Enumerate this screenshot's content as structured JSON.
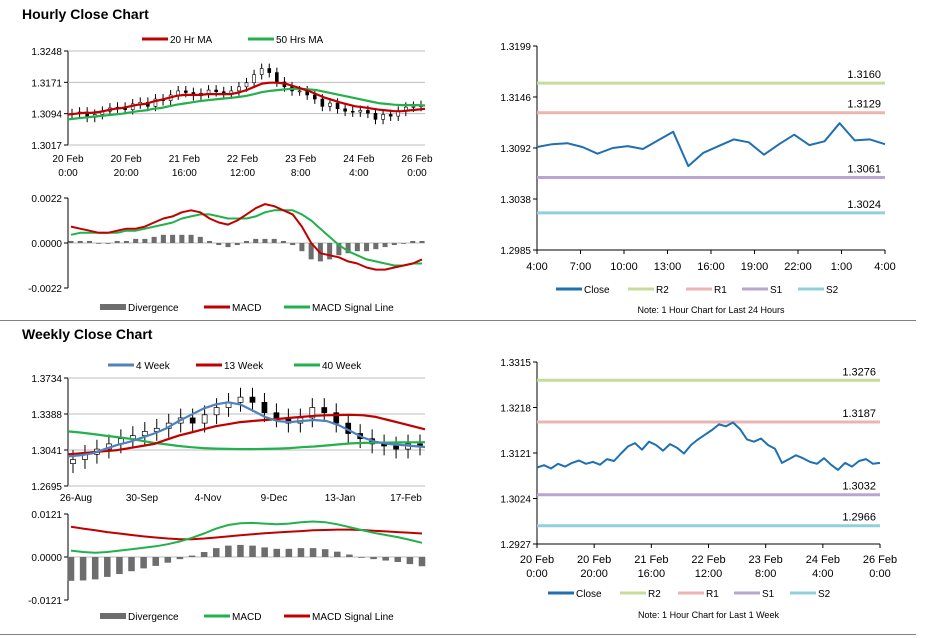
{
  "sections": [
    {
      "title": "Hourly Close Chart"
    },
    {
      "title": "Weekly Close Chart"
    }
  ],
  "colors": {
    "close": "#1f6fb2",
    "r2": "#c5dd98",
    "r1": "#eab4b4",
    "s1": "#b8a6d2",
    "s2": "#8fd0dc",
    "ma_red": "#c00000",
    "ma_green": "#22b14c",
    "ma_blue": "#4f81bd",
    "divergence": "#6d6d6d",
    "candle": "#000000"
  },
  "chart_data": [
    {
      "id": "hourly-price",
      "type": "line",
      "legend": [
        "20 Hr MA",
        "50 Hrs MA"
      ],
      "y_ticks": [
        "1.3248",
        "1.3171",
        "1.3094",
        "1.3017"
      ],
      "ylim": [
        1.3017,
        1.3248
      ],
      "x_ticks": [
        [
          "20 Feb",
          "0:00"
        ],
        [
          "20 Feb",
          "20:00"
        ],
        [
          "21 Feb",
          "16:00"
        ],
        [
          "22 Feb",
          "12:00"
        ],
        [
          "23 Feb",
          "8:00"
        ],
        [
          "24 Feb",
          "4:00"
        ],
        [
          "26 Feb",
          "0:00"
        ]
      ],
      "close": [
        1.3094,
        1.3098,
        1.3085,
        1.3092,
        1.31,
        1.3108,
        1.311,
        1.3104,
        1.3118,
        1.3122,
        1.3112,
        1.313,
        1.3126,
        1.314,
        1.315,
        1.3146,
        1.3138,
        1.3144,
        1.3152,
        1.3148,
        1.3142,
        1.315,
        1.316,
        1.317,
        1.319,
        1.3205,
        1.3195,
        1.3172,
        1.316,
        1.315,
        1.315,
        1.314,
        1.313,
        1.3112,
        1.312,
        1.3106,
        1.31,
        1.3098,
        1.3102,
        1.3095,
        1.308,
        1.3092,
        1.3088,
        1.31,
        1.311,
        1.3112,
        1.3114
      ],
      "ma20": [
        1.3092,
        1.3094,
        1.3096,
        1.3096,
        1.3098,
        1.3102,
        1.3106,
        1.3108,
        1.3112,
        1.3116,
        1.3118,
        1.3124,
        1.3128,
        1.3133,
        1.3138,
        1.314,
        1.314,
        1.314,
        1.3142,
        1.3142,
        1.3142,
        1.3142,
        1.3146,
        1.3152,
        1.316,
        1.3168,
        1.317,
        1.317,
        1.3168,
        1.3162,
        1.3156,
        1.315,
        1.3142,
        1.3134,
        1.3128,
        1.3122,
        1.3117,
        1.3112,
        1.311,
        1.3107,
        1.3104,
        1.3102,
        1.31,
        1.31,
        1.3102,
        1.3104,
        1.3106
      ],
      "ma50": [
        1.308,
        1.3082,
        1.3084,
        1.3086,
        1.3088,
        1.309,
        1.3092,
        1.3094,
        1.3097,
        1.31,
        1.3102,
        1.3106,
        1.3108,
        1.3112,
        1.3116,
        1.3119,
        1.3122,
        1.3125,
        1.3127,
        1.3129,
        1.3131,
        1.3133,
        1.3135,
        1.3138,
        1.3142,
        1.3147,
        1.315,
        1.3152,
        1.3154,
        1.3155,
        1.3155,
        1.3154,
        1.3152,
        1.3148,
        1.3144,
        1.314,
        1.3136,
        1.3132,
        1.3128,
        1.3124,
        1.312,
        1.3118,
        1.3116,
        1.3115,
        1.3115,
        1.3115,
        1.3114
      ]
    },
    {
      "id": "hourly-macd",
      "type": "line",
      "legend": [
        "Divergence",
        "MACD",
        "MACD Signal Line"
      ],
      "y_ticks": [
        "0.0022",
        "0.0000",
        "-0.0022"
      ],
      "ylim": [
        -0.0022,
        0.0022
      ],
      "macd": [
        0.0008,
        0.0007,
        0.0006,
        0.0005,
        0.0005,
        0.0006,
        0.0007,
        0.0007,
        0.0008,
        0.001,
        0.0012,
        0.0013,
        0.0015,
        0.0016,
        0.0015,
        0.0012,
        0.001,
        0.0009,
        0.0011,
        0.0014,
        0.0017,
        0.0019,
        0.0018,
        0.0016,
        0.0014,
        0.0008,
        0.0,
        -0.0005,
        -0.0006,
        -0.0007,
        -0.0009,
        -0.001,
        -0.0012,
        -0.0013,
        -0.0013,
        -0.0012,
        -0.0011,
        -0.001,
        -0.0008
      ],
      "signal": [
        0.0004,
        0.0005,
        0.0005,
        0.0005,
        0.0005,
        0.0005,
        0.0006,
        0.0006,
        0.0007,
        0.0008,
        0.0009,
        0.001,
        0.0012,
        0.0013,
        0.0014,
        0.0014,
        0.0013,
        0.0012,
        0.0012,
        0.0012,
        0.0013,
        0.0015,
        0.0016,
        0.0016,
        0.0016,
        0.0014,
        0.0011,
        0.0007,
        0.0003,
        -0.0001,
        -0.0004,
        -0.0006,
        -0.0008,
        -0.0009,
        -0.001,
        -0.0011,
        -0.0011,
        -0.001,
        -0.001
      ],
      "divergence": [
        0.0001,
        0.0001,
        0.0001,
        0.0,
        0.0,
        0.0001,
        0.0001,
        0.0002,
        0.0002,
        0.0003,
        0.0004,
        0.0004,
        0.0004,
        0.0004,
        0.0003,
        0.0001,
        -0.0001,
        -0.0002,
        -0.0001,
        0.0001,
        0.0002,
        0.0002,
        0.0002,
        0.0001,
        -0.0001,
        -0.0004,
        -0.0008,
        -0.0009,
        -0.0008,
        -0.0006,
        -0.0005,
        -0.0004,
        -0.0004,
        -0.0003,
        -0.0002,
        -0.0001,
        0.0,
        0.0001,
        0.0001
      ]
    },
    {
      "id": "hourly-pivot",
      "type": "line",
      "legend": [
        "Close",
        "R2",
        "R1",
        "S1",
        "S2"
      ],
      "y_ticks": [
        "1.3199",
        "1.3146",
        "1.3092",
        "1.3038",
        "1.2985"
      ],
      "ylim": [
        1.2985,
        1.3199
      ],
      "x_ticks": [
        "4:00",
        "7:00",
        "10:00",
        "13:00",
        "16:00",
        "19:00",
        "22:00",
        "1:00",
        "4:00"
      ],
      "levels": {
        "R2": 1.316,
        "R1": 1.3129,
        "S1": 1.3061,
        "S2": 1.3024
      },
      "level_labels": {
        "R2": "1.3160",
        "R1": "1.3129",
        "S1": "1.3061",
        "S2": "1.3024"
      },
      "close": [
        1.3093,
        1.3096,
        1.3097,
        1.3093,
        1.3086,
        1.3092,
        1.3094,
        1.3091,
        1.31,
        1.3109,
        1.3073,
        1.3087,
        1.3094,
        1.3101,
        1.3098,
        1.3085,
        1.3096,
        1.3106,
        1.3095,
        1.3099,
        1.3118,
        1.31,
        1.3101,
        1.3096
      ],
      "note": "Note: 1 Hour Chart for Last 24 Hours"
    },
    {
      "id": "weekly-price",
      "type": "line",
      "legend": [
        "4 Week",
        "13 Week",
        "40 Week"
      ],
      "y_ticks": [
        "1.3734",
        "1.3388",
        "1.3041",
        "1.2695"
      ],
      "ylim": [
        1.2695,
        1.3734
      ],
      "x_ticks": [
        "26-Aug",
        "30-Sep",
        "4-Nov",
        "9-Dec",
        "13-Jan",
        "17-Feb"
      ],
      "close": [
        1.295,
        1.3,
        1.305,
        1.31,
        1.315,
        1.318,
        1.322,
        1.325,
        1.33,
        1.335,
        1.33,
        1.338,
        1.345,
        1.35,
        1.355,
        1.35,
        1.34,
        1.335,
        1.33,
        1.335,
        1.345,
        1.34,
        1.33,
        1.32,
        1.315,
        1.31,
        1.308,
        1.305,
        1.31,
        1.308
      ],
      "ma4": [
        1.298,
        1.299,
        1.301,
        1.305,
        1.309,
        1.312,
        1.316,
        1.32,
        1.325,
        1.332,
        1.338,
        1.344,
        1.348,
        1.35,
        1.348,
        1.342,
        1.336,
        1.332,
        1.331,
        1.332,
        1.333,
        1.332,
        1.328,
        1.322,
        1.316,
        1.312,
        1.31,
        1.309,
        1.308,
        1.307
      ],
      "ma13": [
        1.3,
        1.301,
        1.302,
        1.303,
        1.304,
        1.306,
        1.308,
        1.31,
        1.314,
        1.318,
        1.321,
        1.324,
        1.327,
        1.329,
        1.331,
        1.332,
        1.333,
        1.334,
        1.335,
        1.336,
        1.337,
        1.3375,
        1.3378,
        1.338,
        1.3375,
        1.336,
        1.333,
        1.33,
        1.327,
        1.324
      ],
      "ma40": [
        1.322,
        1.321,
        1.3195,
        1.318,
        1.3165,
        1.315,
        1.313,
        1.311,
        1.3095,
        1.308,
        1.3068,
        1.306,
        1.3055,
        1.3052,
        1.305,
        1.305,
        1.3052,
        1.3055,
        1.306,
        1.3068,
        1.3075,
        1.3085,
        1.3095,
        1.3105,
        1.311,
        1.3112,
        1.3113,
        1.3114,
        1.3115,
        1.3116
      ]
    },
    {
      "id": "weekly-macd",
      "type": "line",
      "legend": [
        "Divergence",
        "MACD",
        "MACD Signal Line"
      ],
      "y_ticks": [
        "0.0121",
        "0.0000",
        "-0.0121"
      ],
      "ylim": [
        -0.0121,
        0.0121
      ],
      "macd": [
        0.0018,
        0.0014,
        0.0012,
        0.0014,
        0.0018,
        0.0022,
        0.0026,
        0.003,
        0.0036,
        0.0044,
        0.0054,
        0.0066,
        0.008,
        0.009,
        0.0095,
        0.0096,
        0.0094,
        0.0092,
        0.0094,
        0.0098,
        0.01,
        0.0098,
        0.0092,
        0.0084,
        0.0076,
        0.0068,
        0.0062,
        0.0056,
        0.0048,
        0.004
      ],
      "signal": [
        0.0085,
        0.008,
        0.0075,
        0.007,
        0.0066,
        0.0062,
        0.0058,
        0.0055,
        0.0052,
        0.005,
        0.005,
        0.0052,
        0.0055,
        0.0058,
        0.0061,
        0.0064,
        0.0067,
        0.0069,
        0.0071,
        0.0073,
        0.0075,
        0.0076,
        0.0077,
        0.0077,
        0.0076,
        0.0074,
        0.0072,
        0.007,
        0.0068,
        0.0066
      ],
      "divergence": [
        -0.0067,
        -0.0066,
        -0.0063,
        -0.0056,
        -0.0048,
        -0.004,
        -0.0032,
        -0.0025,
        -0.0016,
        -0.0006,
        0.0004,
        0.0014,
        0.0025,
        0.0032,
        0.0034,
        0.0032,
        0.0027,
        0.0023,
        0.0023,
        0.0025,
        0.0025,
        0.0022,
        0.0015,
        0.0007,
        0.0,
        -0.0006,
        -0.001,
        -0.0014,
        -0.002,
        -0.0026
      ]
    },
    {
      "id": "weekly-pivot",
      "type": "line",
      "legend": [
        "Close",
        "R2",
        "R1",
        "S1",
        "S2"
      ],
      "y_ticks": [
        "1.3315",
        "1.3218",
        "1.3121",
        "1.3024",
        "1.2927"
      ],
      "ylim": [
        1.2927,
        1.3315
      ],
      "x_ticks": [
        [
          "20 Feb",
          "0:00"
        ],
        [
          "20 Feb",
          "20:00"
        ],
        [
          "21 Feb",
          "16:00"
        ],
        [
          "22 Feb",
          "12:00"
        ],
        [
          "23 Feb",
          "8:00"
        ],
        [
          "24 Feb",
          "4:00"
        ],
        [
          "26 Feb",
          "0:00"
        ]
      ],
      "levels": {
        "R2": 1.3276,
        "R1": 1.3187,
        "S1": 1.3032,
        "S2": 1.2966
      },
      "level_labels": {
        "R2": "1.3276",
        "R1": "1.3187",
        "S1": "1.3032",
        "S2": "1.2966"
      },
      "close": [
        1.309,
        1.3095,
        1.3088,
        1.3098,
        1.3092,
        1.31,
        1.3105,
        1.3098,
        1.3102,
        1.3096,
        1.3108,
        1.3104,
        1.312,
        1.3135,
        1.3142,
        1.3128,
        1.3145,
        1.3138,
        1.3126,
        1.314,
        1.3132,
        1.312,
        1.3138,
        1.315,
        1.316,
        1.317,
        1.3182,
        1.3178,
        1.3186,
        1.3172,
        1.315,
        1.3145,
        1.3152,
        1.3138,
        1.313,
        1.31,
        1.3108,
        1.3116,
        1.311,
        1.3102,
        1.3098,
        1.311,
        1.3096,
        1.3085,
        1.31,
        1.3092,
        1.3104,
        1.3108,
        1.3098,
        1.31
      ],
      "note": "Note: 1 Hour Chart for  Last 1 Week"
    }
  ]
}
